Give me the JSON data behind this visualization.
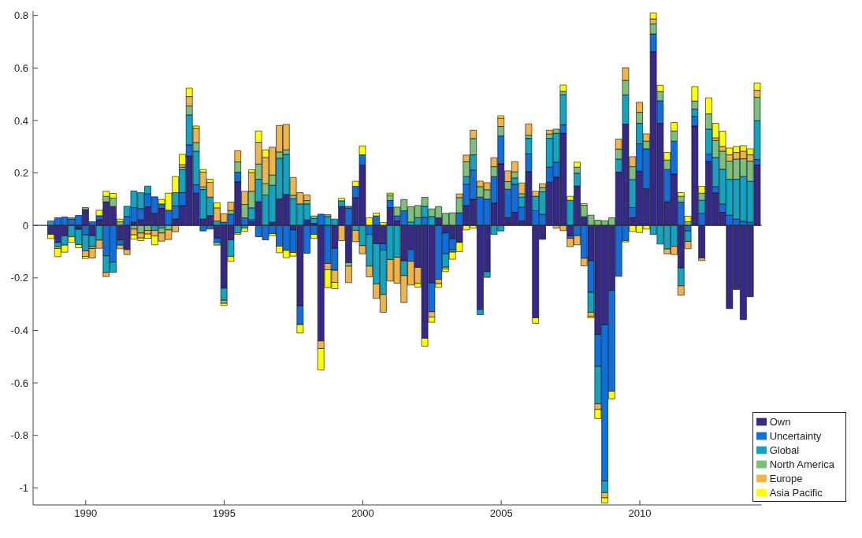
{
  "chart_data": {
    "type": "bar",
    "stacked": true,
    "x": [
      1988.75,
      1989,
      1989.25,
      1989.5,
      1989.75,
      1990,
      1990.25,
      1990.5,
      1990.75,
      1991,
      1991.25,
      1991.5,
      1991.75,
      1992,
      1992.25,
      1992.5,
      1992.75,
      1993,
      1993.25,
      1993.5,
      1993.75,
      1994,
      1994.25,
      1994.5,
      1994.75,
      1995,
      1995.25,
      1995.5,
      1995.75,
      1996,
      1996.25,
      1996.5,
      1996.75,
      1997,
      1997.25,
      1997.5,
      1997.75,
      1998,
      1998.25,
      1998.5,
      1998.75,
      1999,
      1999.25,
      1999.5,
      1999.75,
      2000,
      2000.25,
      2000.5,
      2000.75,
      2001,
      2001.25,
      2001.5,
      2001.75,
      2002,
      2002.25,
      2002.5,
      2002.75,
      2003,
      2003.25,
      2003.5,
      2003.75,
      2004,
      2004.25,
      2004.5,
      2004.75,
      2005,
      2005.25,
      2005.5,
      2005.75,
      2006,
      2006.25,
      2006.5,
      2006.75,
      2007,
      2007.25,
      2007.5,
      2007.75,
      2008,
      2008.25,
      2008.5,
      2008.75,
      2009,
      2009.25,
      2009.5,
      2009.75,
      2010,
      2010.25,
      2010.5,
      2010.75,
      2011,
      2011.25,
      2011.5,
      2011.75,
      2012,
      2012.25,
      2012.5,
      2012.75,
      2013,
      2013.25,
      2013.5,
      2013.75,
      2014,
      2014.25
    ],
    "series": [
      {
        "name": "Own",
        "color": "#352a87",
        "values": [
          -0.034,
          -0.065,
          -0.039,
          0,
          -0.015,
          0.06,
          -0.039,
          0.022,
          0.09,
          0.072,
          -0.055,
          -0.092,
          0.012,
          0.021,
          0.071,
          0.046,
          0.065,
          0,
          0.024,
          0.075,
          0.264,
          0.123,
          0.024,
          0.037,
          -0.048,
          -0.239,
          -0.055,
          0.166,
          0,
          0.014,
          0.09,
          null,
          0.012,
          0.101,
          0.118,
          -0.017,
          -0.306,
          0.021,
          0.008,
          -0.44,
          null,
          -0.087,
          0.072,
          -0.142,
          0.106,
          0.23,
          0,
          -0.07,
          -0.07,
          0.068,
          0.017,
          -0.135,
          -0.092,
          -0.16,
          -0.43,
          -0.219,
          0.029,
          -0.029,
          -0.05,
          -0.065,
          0.075,
          0.1,
          -0.32,
          -0.176,
          0.085,
          0.235,
          0.029,
          0.05,
          0.017,
          0.205,
          -0.352,
          -0.053,
          0.165,
          0.184,
          0.351,
          -0.039,
          0.15,
          0.033,
          -0.134,
          -0.415,
          -0.378,
          -0.247,
          0.203,
          0.386,
          0.029,
          0.207,
          0.14,
          0.662,
          0.389,
          0.09,
          0.196,
          -0.162,
          null,
          0.379,
          -0.124,
          0.244,
          0.124,
          0.05,
          -0.317,
          -0.244,
          -0.359,
          -0.272,
          0.23
        ]
      },
      {
        "name": "Uncertainty",
        "color": "#0f6fdf",
        "values": [
          0,
          0.029,
          0.032,
          0.024,
          0.038,
          -0.036,
          0.014,
          0.015,
          -0.116,
          -0.14,
          -0.02,
          0.034,
          0.056,
          0.043,
          0.05,
          0.063,
          0.017,
          0.058,
          0.051,
          0.05,
          0.043,
          0.032,
          -0.021,
          -0.014,
          -0.016,
          0.012,
          0.043,
          0.037,
          0.029,
          0.008,
          -0.043,
          -0.055,
          -0.031,
          -0.079,
          -0.095,
          -0.086,
          -0.072,
          -0.106,
          -0.034,
          0.043,
          -0.145,
          -0.084,
          0,
          0.066,
          0.043,
          0.039,
          -0.034,
          0.036,
          -0.024,
          0.027,
          0.019,
          0.056,
          -0.045,
          null,
          0.031,
          -0.11,
          -0.205,
          -0.079,
          -0.042,
          0.048,
          0.082,
          0.111,
          0.108,
          0.1,
          0.101,
          0.106,
          0.109,
          0.107,
          0.053,
          0.068,
          0.056,
          0.043,
          0.057,
          0.057,
          0.032,
          -0.01,
          -0.039,
          -0.125,
          -0.121,
          -0.122,
          -0.596,
          -0.385,
          -0.194,
          -0.058,
          0.039,
          0.104,
          0.152,
          0.068,
          0.086,
          0.123,
          0.125,
          0.089,
          -0.021,
          0.037,
          0.046,
          0.028,
          0.024,
          0.032,
          0.039,
          0.024,
          0.016,
          0.012,
          0.021
        ]
      },
      {
        "name": "Global",
        "color": "#12a4c0",
        "values": [
          0.017,
          -0.015,
          -0.036,
          -0.043,
          -0.058,
          -0.061,
          -0.041,
          -0.056,
          -0.063,
          -0.039,
          0,
          0.039,
          0.063,
          0.061,
          0.029,
          -0.019,
          -0.01,
          0,
          0.05,
          0.087,
          0.114,
          0.128,
          0.113,
          0.071,
          0.017,
          -0.046,
          -0.063,
          -0.029,
          -0.01,
          0.045,
          0.086,
          0.116,
          0.141,
          0.155,
          0.153,
          0.101,
          0.082,
          0.061,
          0.018,
          0,
          0.034,
          0.024,
          0.022,
          0.007,
          -0.019,
          -0.077,
          -0.121,
          -0.153,
          -0.169,
          -0.13,
          -0.121,
          -0.056,
          0.013,
          0.03,
          0.042,
          0.034,
          0,
          -0.051,
          -0.01,
          0,
          0.029,
          0.058,
          -0.02,
          -0.022,
          -0.034,
          -0.021,
          0,
          0.024,
          0.038,
          0.059,
          0.055,
          0.085,
          0.11,
          0.11,
          0.115,
          0.096,
          0.049,
          0,
          -0.076,
          -0.143,
          -0.044,
          0,
          0.05,
          0.111,
          0.107,
          0.078,
          0,
          -0.034,
          -0.071,
          -0.09,
          -0.08,
          -0.068,
          -0.04,
          0.027,
          0.05,
          0.095,
          0.111,
          0.132,
          0.137,
          0.152,
          0.17,
          0.156,
          0.148
        ]
      },
      {
        "name": "North America",
        "color": "#7dc07b",
        "values": [
          0,
          -0.008,
          0,
          0.005,
          0,
          0.008,
          -0.008,
          0,
          0.021,
          0.032,
          0.014,
          0,
          -0.014,
          -0.029,
          -0.019,
          0,
          -0.019,
          -0.017,
          0,
          0.01,
          0.034,
          0.033,
          0.01,
          0,
          -0.011,
          -0.012,
          0.014,
          0.039,
          0.051,
          0.063,
          0.058,
          0.043,
          0.039,
          0.024,
          0.017,
          0.014,
          0,
          0.013,
          0.01,
          0,
          0.007,
          0,
          0,
          -0.013,
          0,
          0,
          0,
          0,
          0,
          0.021,
          0.034,
          0.043,
          0.058,
          0.046,
          0.034,
          0.029,
          0.043,
          0.046,
          0.048,
          0.058,
          0.057,
          0.062,
          0.04,
          0.036,
          0.038,
          0.036,
          0.029,
          0.023,
          0.013,
          0.012,
          0,
          0.016,
          0.016,
          0.016,
          0.013,
          0,
          0.023,
          0.044,
          0.039,
          0.02,
          0.018,
          0.029,
          0.038,
          0.056,
          0.049,
          0.042,
          0.029,
          0.038,
          0.035,
          0.036,
          0.039,
          0.022,
          0.014,
          0.031,
          0.027,
          0.058,
          0.065,
          0.069,
          0.069,
          0.077,
          0.068,
          0.077,
          0.089
        ]
      },
      {
        "name": "Europe",
        "color": "#f0b44c",
        "values": [
          0,
          0,
          0,
          0,
          0,
          -0.021,
          -0.036,
          -0.031,
          -0.016,
          0,
          -0.014,
          -0.019,
          -0.022,
          -0.019,
          -0.014,
          -0.021,
          -0.031,
          -0.037,
          -0.024,
          0.01,
          0.036,
          0.054,
          0.056,
          0.056,
          0.05,
          0.032,
          0.032,
          0.043,
          0.05,
          0.072,
          0.083,
          0.1,
          0.106,
          0.101,
          0.097,
          0.068,
          0.043,
          0.021,
          0,
          -0.029,
          -0.024,
          -0.046,
          -0.058,
          -0.063,
          -0.043,
          -0.031,
          -0.041,
          -0.055,
          -0.068,
          -0.082,
          -0.099,
          -0.103,
          -0.09,
          -0.061,
          0,
          -0.02,
          -0.017,
          -0.007,
          0,
          0.014,
          0.025,
          0.032,
          0.021,
          0.027,
          0.034,
          0.032,
          0.041,
          0.039,
          0.041,
          0.043,
          0.019,
          0.015,
          0.015,
          -0.01,
          -0.02,
          -0.032,
          -0.035,
          -0.029,
          -0.015,
          -0.021,
          -0.02,
          0,
          0.038,
          0.048,
          0.038,
          0.038,
          0.028,
          0.019,
          0,
          -0.018,
          -0.031,
          -0.036,
          -0.028,
          0,
          -0.01,
          0,
          0.01,
          0.018,
          0.024,
          0.025,
          0.029,
          0.024,
          0.027
        ]
      },
      {
        "name": "Asia Pacific",
        "color": "#ffff00",
        "values": [
          -0.016,
          -0.031,
          -0.027,
          -0.021,
          -0.012,
          -0.008,
          0,
          0.021,
          0.019,
          0.018,
          0.01,
          0,
          -0.016,
          -0.01,
          -0.016,
          -0.034,
          0.017,
          0.065,
          0.061,
          0.039,
          0.032,
          0.009,
          0.01,
          0.012,
          0.019,
          -0.008,
          -0.019,
          -0.005,
          -0.012,
          0.01,
          0.043,
          0.029,
          -0.008,
          -0.025,
          -0.028,
          -0.014,
          -0.032,
          0,
          -0.016,
          -0.082,
          -0.068,
          -0.024,
          0.009,
          0,
          0.019,
          0.034,
          0.029,
          0.011,
          0.011,
          0.007,
          0,
          0,
          0,
          -0.014,
          -0.03,
          -0.02,
          -0.014,
          -0.01,
          -0.027,
          -0.035,
          -0.017,
          -0.01,
          0,
          0,
          0,
          0.009,
          0,
          0,
          0,
          0,
          -0.021,
          0,
          0,
          0,
          0.024,
          0.015,
          0.019,
          0.006,
          -0.006,
          -0.035,
          -0.02,
          -0.029,
          0,
          -0.005,
          -0.023,
          -0.027,
          -0.014,
          0.023,
          0.024,
          0.029,
          0.032,
          0.014,
          0.021,
          0.055,
          0.026,
          0.061,
          0.055,
          0.058,
          0.026,
          0.023,
          0.021,
          0.023,
          0.028
        ]
      }
    ],
    "xlim": [
      1988.1,
      2014.4
    ],
    "xticks": [
      1990,
      1995,
      2000,
      2005,
      2010
    ],
    "ylim": [
      -1.065,
      0.817
    ],
    "yticks": [
      -1,
      -0.8,
      -0.6,
      -0.4,
      -0.2,
      0,
      0.2,
      0.4,
      0.6,
      0.8
    ],
    "ref_lines": [
      {
        "axis": "y",
        "value": 0,
        "color": "#333333"
      }
    ],
    "grid": false,
    "legend": "bottom right"
  }
}
